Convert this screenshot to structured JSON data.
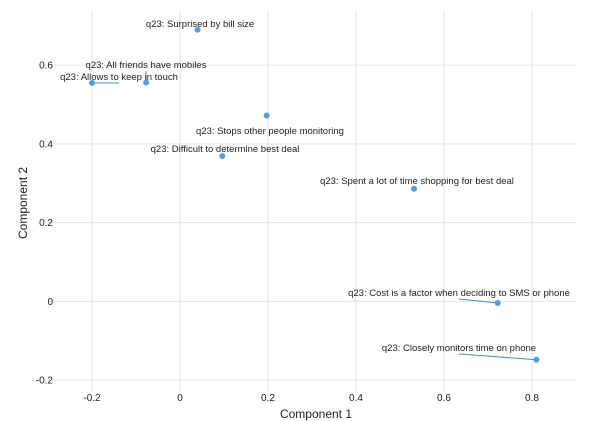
{
  "chart_data": {
    "type": "scatter",
    "xlabel": "Component 1",
    "ylabel": "Component 2",
    "xlim": [
      -0.3,
      0.9
    ],
    "ylim": [
      -0.23,
      0.74
    ],
    "xticks": [
      "-0.2",
      "0",
      "0.2",
      "0.4",
      "0.6",
      "0.8"
    ],
    "xtick_values": [
      -0.2,
      0,
      0.2,
      0.4,
      0.6,
      0.8
    ],
    "yticks": [
      "-0.2",
      "0",
      "0.2",
      "0.4",
      "0.6"
    ],
    "ytick_values": [
      -0.2,
      0,
      0.2,
      0.4,
      0.6
    ],
    "grid": true,
    "point_color": "#5b9bd5",
    "points": [
      {
        "label": "q23: Surprised by bill size",
        "x": 0.04,
        "y": 0.69
      },
      {
        "label": "q23: All friends have mobiles",
        "x": -0.077,
        "y": 0.556
      },
      {
        "label": "q23: Allows to keep in touch",
        "x": -0.2,
        "y": 0.555
      },
      {
        "label": "q23: Stops other people monitoring",
        "x": 0.197,
        "y": 0.472
      },
      {
        "label": "q23: Difficult to determine best deal",
        "x": 0.096,
        "y": 0.369
      },
      {
        "label": "q23: Spent a lot of time shopping for best deal",
        "x": 0.532,
        "y": 0.286
      },
      {
        "label": "q23: Cost is a factor when deciding to SMS or phone",
        "x": 0.722,
        "y": -0.004
      },
      {
        "label": "q23: Closely monitors time on phone",
        "x": 0.81,
        "y": -0.148
      }
    ]
  }
}
